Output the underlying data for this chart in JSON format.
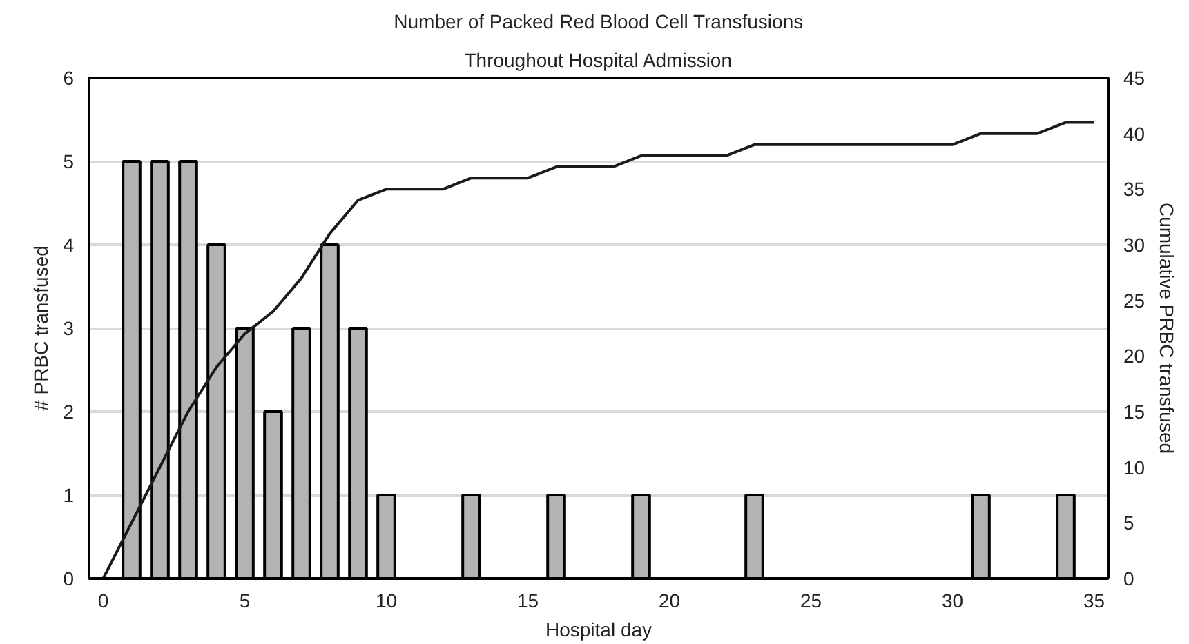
{
  "chart_data": {
    "type": "bar",
    "title": "Number of Packed Red Blood Cell Transfusions",
    "subtitle": "Throughout Hospital Admission",
    "xlabel": "Hospital day",
    "ylabel": "# PRBC transfused",
    "y2label": "Cumulative PRBC transfused",
    "xlim": [
      -0.5,
      35.5
    ],
    "xticks": [
      0,
      5,
      10,
      15,
      20,
      25,
      30,
      35
    ],
    "ylim": [
      0,
      6
    ],
    "yticks": [
      0,
      1,
      2,
      3,
      4,
      5,
      6
    ],
    "y2lim": [
      0,
      45
    ],
    "y2ticks": [
      0,
      5,
      10,
      15,
      20,
      25,
      30,
      35,
      40,
      45
    ],
    "grid": "y",
    "series": [
      {
        "color": "#b3b3b3",
        "x": [
          1,
          2,
          3,
          4,
          5,
          6,
          7,
          8,
          9,
          10,
          13,
          16,
          19,
          23,
          31,
          34
        ],
        "values": [
          5,
          5,
          5,
          4,
          3,
          2,
          3,
          4,
          3,
          1,
          1,
          1,
          1,
          1,
          1,
          1
        ]
      },
      {
        "type": "line",
        "axis": "y2",
        "color": "#1a1a1a",
        "x": [
          0,
          1,
          2,
          3,
          4,
          5,
          6,
          7,
          8,
          9,
          10,
          12,
          13,
          15,
          16,
          18,
          19,
          22,
          23,
          30,
          31,
          33,
          34,
          35
        ],
        "values": [
          0,
          5,
          10,
          15,
          19,
          22,
          24,
          27,
          31,
          34,
          35,
          35,
          36,
          36,
          37,
          37,
          38,
          38,
          39,
          39,
          40,
          40,
          41,
          41
        ]
      }
    ]
  }
}
